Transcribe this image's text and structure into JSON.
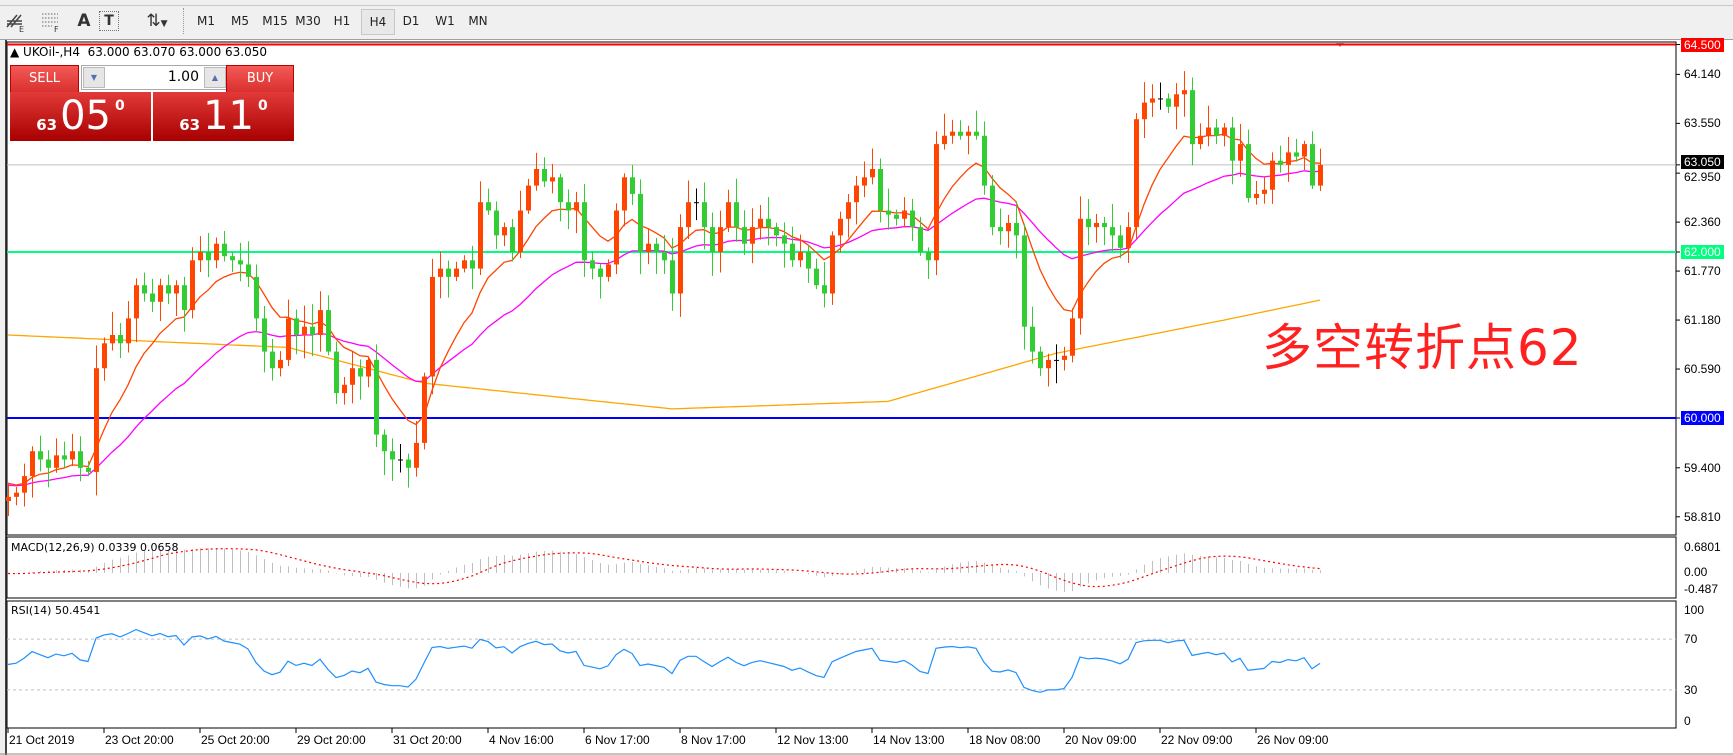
{
  "toolbar": {
    "icons": [
      "chart-objects-icon",
      "grid-icon",
      "text-icon",
      "text-label-icon",
      "arrows-icon"
    ],
    "icon_glyphs": {
      "text": "A",
      "label": "T",
      "arrows": "⇅"
    },
    "timeframes": [
      "M1",
      "M5",
      "M15",
      "M30",
      "H1",
      "H4",
      "D1",
      "W1",
      "MN"
    ],
    "active_timeframe": "H4"
  },
  "header": {
    "symbol": "UKOil-,H4",
    "ohlc": "63.000 63.070 63.000 63.050"
  },
  "trade_panel": {
    "sell_label": "SELL",
    "buy_label": "BUY",
    "volume": "1.00",
    "sell_price": {
      "small": "63",
      "big": "05",
      "sup": "0"
    },
    "buy_price": {
      "small": "63",
      "big": "11",
      "sup": "0"
    }
  },
  "price_axis": {
    "labels": [
      "64.140",
      "63.550",
      "62.950",
      "62.360",
      "61.770",
      "61.180",
      "60.590",
      "59.400",
      "58.810"
    ],
    "current_price": "63.050",
    "current_price_color": "#000000"
  },
  "hlines": [
    {
      "value": "64.500",
      "color": "#ff0000"
    },
    {
      "value": "62.000",
      "color": "#00ff7f"
    },
    {
      "value": "60.000",
      "color": "#0000ff"
    }
  ],
  "annotation": {
    "text": "多空转折点62",
    "color": "#ff2020"
  },
  "indicators": {
    "macd_label": "MACD(12,26,9) 0.0339 0.0658",
    "macd_axis": [
      "0.6801",
      "0.00",
      "-0.487"
    ],
    "rsi_label": "RSI(14) 50.4541",
    "rsi_axis": [
      "100",
      "70",
      "30",
      "0"
    ]
  },
  "time_axis": [
    "21 Oct 2019",
    "23 Oct 20:00",
    "25 Oct 20:00",
    "29 Oct 20:00",
    "31 Oct 20:00",
    "4 Nov 16:00",
    "6 Nov 17:00",
    "8 Nov 17:00",
    "12 Nov 13:00",
    "14 Nov 13:00",
    "18 Nov 08:00",
    "20 Nov 09:00",
    "22 Nov 09:00",
    "26 Nov 09:00"
  ],
  "colors": {
    "bull": "#ff4500",
    "bear": "#32cd32",
    "ma_fast": "#ff4500",
    "ma_mid": "#ff00ff",
    "ma_slow": "#ffa500",
    "rsi": "#1e90ff",
    "macd_hist": "#c0c0c0",
    "macd_signal": "#ff0000"
  },
  "chart_data": {
    "type": "candlestick",
    "symbol": "UKOil-",
    "timeframe": "H4",
    "ylim": [
      58.6,
      64.6
    ],
    "first_open": 59.0,
    "closes": [
      59.05,
      59.1,
      59.3,
      59.6,
      59.5,
      59.4,
      59.55,
      59.5,
      59.6,
      59.4,
      59.35,
      60.6,
      60.9,
      61.0,
      60.9,
      61.2,
      61.6,
      61.5,
      61.4,
      61.6,
      61.5,
      61.6,
      61.3,
      61.9,
      62.0,
      61.9,
      62.1,
      61.95,
      61.9,
      61.85,
      61.7,
      61.2,
      60.8,
      60.6,
      60.7,
      61.2,
      61.0,
      61.1,
      61.0,
      61.3,
      60.8,
      60.3,
      60.4,
      60.6,
      60.5,
      60.7,
      59.8,
      59.6,
      59.5,
      59.5,
      59.4,
      59.7,
      60.5,
      61.7,
      61.8,
      61.7,
      61.8,
      61.9,
      61.8,
      62.6,
      62.5,
      62.2,
      62.3,
      62.0,
      62.5,
      62.8,
      63.0,
      62.85,
      62.9,
      62.6,
      62.5,
      62.6,
      61.9,
      61.8,
      61.7,
      61.85,
      62.5,
      62.9,
      62.7,
      62.0,
      62.1,
      62.0,
      61.9,
      61.5,
      62.3,
      62.6,
      62.6,
      62.3,
      62.0,
      62.3,
      62.6,
      62.3,
      62.1,
      62.3,
      62.4,
      62.3,
      62.2,
      62.1,
      61.9,
      62.0,
      61.8,
      61.6,
      61.5,
      62.2,
      62.4,
      62.6,
      62.8,
      62.9,
      63.0,
      62.5,
      62.45,
      62.4,
      62.5,
      62.3,
      62.0,
      61.9,
      63.3,
      63.4,
      63.45,
      63.4,
      63.45,
      63.4,
      62.8,
      62.3,
      62.25,
      62.35,
      62.2,
      61.1,
      60.8,
      60.6,
      60.7,
      60.7,
      60.75,
      61.2,
      62.4,
      62.3,
      62.35,
      62.3,
      62.2,
      62.05,
      62.3,
      63.6,
      63.8,
      63.85,
      63.85,
      63.75,
      63.9,
      63.95,
      63.3,
      63.4,
      63.5,
      63.4,
      63.5,
      63.1,
      63.3,
      62.65,
      62.7,
      62.75,
      63.1,
      63.05,
      63.2,
      63.15,
      63.3,
      62.8,
      63.05
    ],
    "ma_slow_points": [
      [
        0,
        61.0
      ],
      [
        35,
        60.85
      ],
      [
        52,
        60.42
      ],
      [
        83,
        60.11
      ],
      [
        110,
        60.2
      ],
      [
        131,
        60.78
      ],
      [
        152,
        61.18
      ],
      [
        164,
        61.42
      ]
    ],
    "rsi_levels": [
      70,
      30
    ],
    "macd_params": [
      12,
      26,
      9
    ],
    "rsi_period": 14
  }
}
